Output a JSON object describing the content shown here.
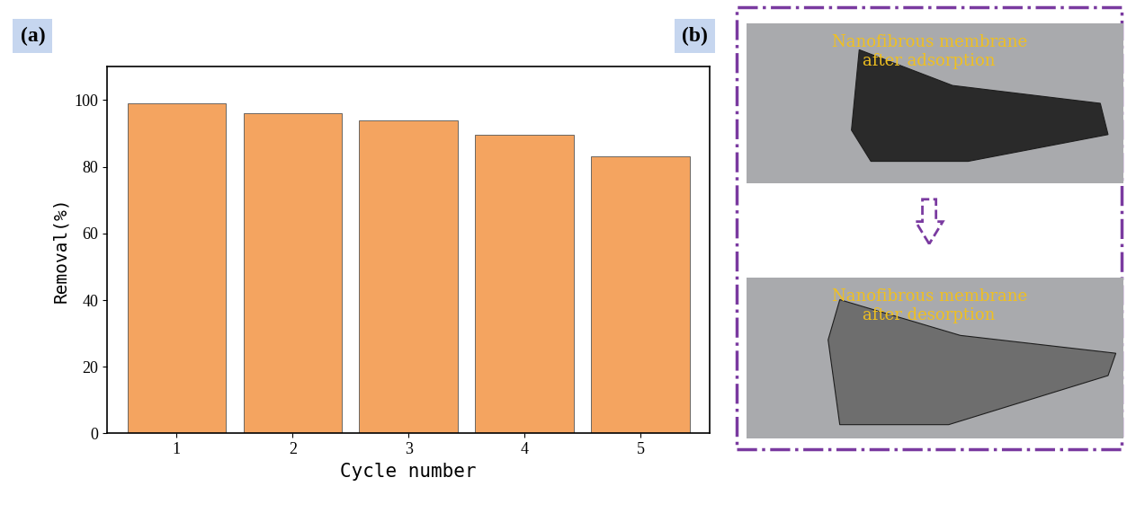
{
  "chart_data": {
    "type": "bar",
    "annotations": [
      "(a)"
    ],
    "x_label": "Cycle number",
    "y_label": "Removal(%)",
    "categories": [
      "1",
      "2",
      "3",
      "4",
      "5"
    ],
    "values": [
      99,
      96,
      94,
      89.5,
      83
    ],
    "color": "#f4a460",
    "ylim": [
      0,
      110
    ],
    "yticks": [
      0,
      20,
      40,
      60,
      80,
      100
    ],
    "grid": false
  },
  "panel_b": {
    "label": "(b)",
    "images": [
      {
        "caption": "Nanofibrous membrane\nafter adsorption"
      },
      {
        "caption": "Nanofibrous membrane\nafter desorption"
      }
    ]
  }
}
